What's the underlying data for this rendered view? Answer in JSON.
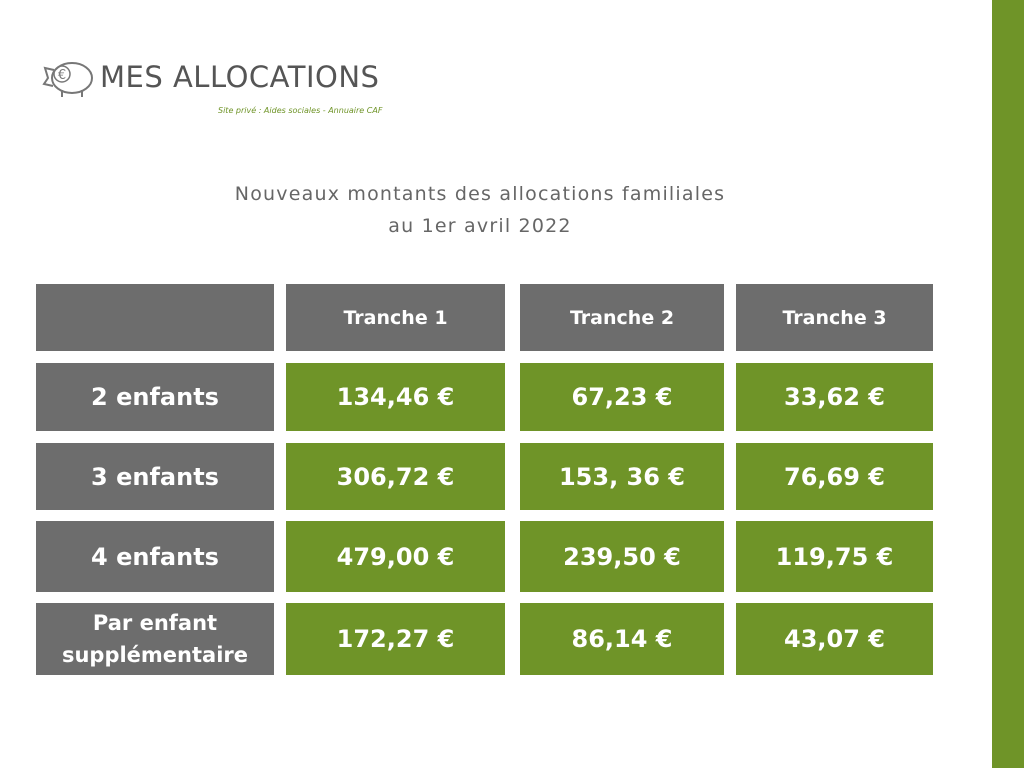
{
  "header": {
    "logo": "MES ALLOCATIONS",
    "tagline": "Site privé : Aides sociales - Annuaire CAF"
  },
  "title": [
    "Nouveaux montants des allocations familiales",
    "au 1er avril 2022"
  ],
  "table": {
    "columns": [
      "Tranche 1",
      "Tranche 2",
      "Tranche 3"
    ],
    "rows": [
      {
        "label": "2 enfants",
        "values": [
          "134,46 €",
          "67,23 €",
          "33,62 €"
        ]
      },
      {
        "label": "3 enfants",
        "values": [
          "306,72 €",
          "153, 36 €",
          "76,69 €"
        ]
      },
      {
        "label": "4 enfants",
        "values": [
          "479,00 €",
          "239,50 €",
          "119,75 €"
        ]
      },
      {
        "label": "Par enfant supplémentaire",
        "values": [
          "172,27 €",
          "86,14 €",
          "43,07 €"
        ]
      }
    ]
  }
}
